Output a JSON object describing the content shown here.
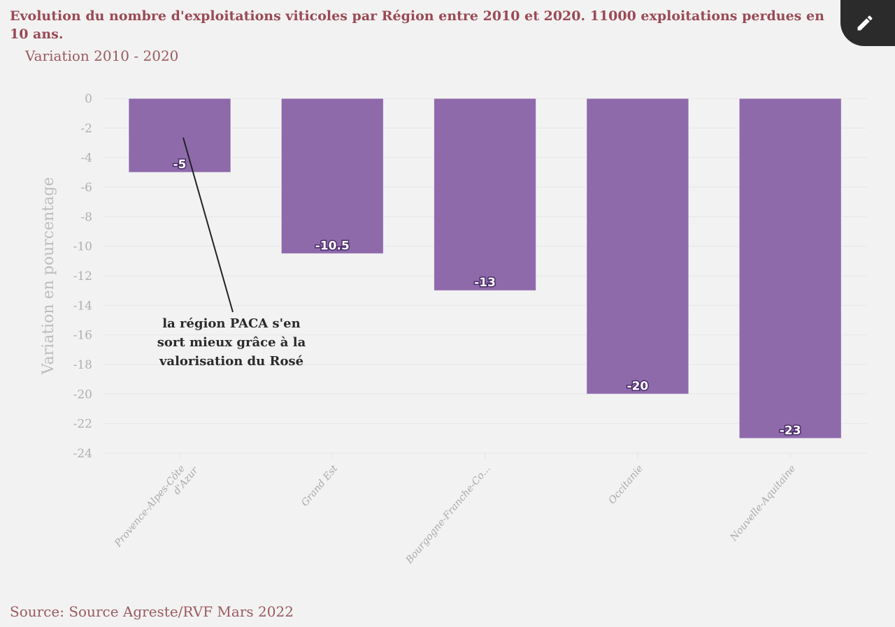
{
  "title": "Evolution du nombre d'exploitations viticoles par Région entre 2010 et 2020. 11000 exploitations perdues en 10 ans.",
  "subtitle": "Variation 2010 - 2020",
  "source": "Source: Source Agreste/RVF Mars 2022",
  "edit_button": {
    "icon": "pencil-icon"
  },
  "chart_data": {
    "type": "bar",
    "categories": [
      "Provence-Alpes-Côte d'Azur",
      "Grand Est",
      "Bourgogne-Franche-Co...",
      "Occitanie",
      "Nouvelle-Aquitaine"
    ],
    "values": [
      -5,
      -10.5,
      -13,
      -20,
      -23
    ],
    "data_labels": [
      "-5",
      "-10.5",
      "-13",
      "-20",
      "-23"
    ],
    "ylabel": "Variation en pourcentage",
    "xlabel": "",
    "ylim": [
      -24,
      0
    ],
    "yticks": [
      0,
      -2,
      -4,
      -6,
      -8,
      -10,
      -12,
      -14,
      -16,
      -18,
      -20,
      -22,
      -24
    ],
    "grid": true,
    "bar_color": "#8e6aab",
    "annotation": {
      "text_lines": [
        "la région PACA s'en",
        "sort mieux grâce à la",
        "valorisation du Rosé"
      ],
      "points_to": "Provence-Alpes-Côte d'Azur"
    }
  }
}
